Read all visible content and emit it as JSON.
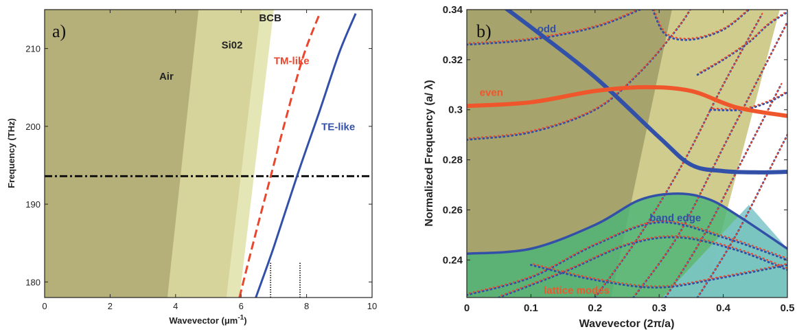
{
  "chart_data": [
    {
      "type": "line",
      "panel_label": "a)",
      "xlabel": "Wavevector (μm",
      "xlabel_sup": "-1",
      "xlabel_end": ")",
      "ylabel": "Frequency (THz)",
      "xlim": [
        0,
        10
      ],
      "ylim": [
        178,
        215
      ],
      "xticks": [
        0,
        2,
        4,
        6,
        8,
        10
      ],
      "yticks": [
        180,
        190,
        200,
        210
      ],
      "regions": [
        {
          "name": "Air",
          "color": "#b5b07a",
          "boundary": [
            [
              3.75,
              178
            ],
            [
              4.7,
              215
            ]
          ]
        },
        {
          "name": "Si02",
          "color": "#d6d49a",
          "boundary": [
            [
              5.55,
              178
            ],
            [
              6.6,
              215
            ]
          ]
        },
        {
          "name": "BCB",
          "color": "#e5e6b6",
          "boundary": [
            [
              5.95,
              178
            ],
            [
              7.0,
              215
            ]
          ]
        }
      ],
      "series": [
        {
          "name": "TM-like",
          "color": "#e8472e",
          "dash": "dashed",
          "x": [
            5.95,
            6.4,
            6.9,
            7.4,
            7.9,
            8.4
          ],
          "y": [
            178,
            185.5,
            193.5,
            201.5,
            209,
            214.5
          ]
        },
        {
          "name": "TE-like",
          "color": "#3350a8",
          "dash": "solid",
          "x": [
            6.45,
            7.0,
            7.7,
            8.4,
            9.0,
            9.5
          ],
          "y": [
            178,
            184.5,
            193.5,
            202,
            209.5,
            214.5
          ]
        }
      ],
      "hline": {
        "y": 193.6,
        "style": "dash-dot",
        "color": "#111111"
      },
      "dotted_markers": [
        {
          "x": 6.9,
          "y": [
            178,
            182.5
          ]
        },
        {
          "x": 7.8,
          "y": [
            178,
            182.5
          ]
        }
      ],
      "annotations": [
        {
          "text": "Air",
          "x": 3.5,
          "y": 206,
          "color": "#222222"
        },
        {
          "text": "Si02",
          "x": 5.4,
          "y": 210,
          "color": "#222222"
        },
        {
          "text": "BCB",
          "x": 6.55,
          "y": 213.5,
          "color": "#222222"
        },
        {
          "text": "TM-like",
          "x": 7.0,
          "y": 208,
          "color": "#e8472e"
        },
        {
          "text": "TE-like",
          "x": 8.45,
          "y": 199.5,
          "color": "#3350a8"
        }
      ]
    },
    {
      "type": "line",
      "panel_label": "b)",
      "xlabel": "Wavevector (2π/a)",
      "ylabel": "Normalized Frequency (a/ λ)",
      "xlim": [
        0,
        0.5
      ],
      "ylim": [
        0.225,
        0.34
      ],
      "xticks": [
        0,
        0.1,
        0.2,
        0.3,
        0.4,
        0.5
      ],
      "yticks": [
        0.24,
        0.26,
        0.28,
        0.3,
        0.32,
        0.34
      ],
      "regions": [
        {
          "name": "light cone outer",
          "color": "#cfcc8e"
        },
        {
          "name": "light cone inner",
          "color": "#a7a36c"
        },
        {
          "name": "lattice band region",
          "color": "#4fb577"
        },
        {
          "name": "lattice band region 2",
          "color": "#7ec6c9"
        }
      ],
      "series": [
        {
          "name": "odd",
          "color": "#3350a8",
          "x": [
            0.0,
            0.1,
            0.2,
            0.3,
            0.35,
            0.4,
            0.45,
            0.5
          ],
          "y": [
            0.352,
            0.333,
            0.313,
            0.289,
            0.278,
            0.2755,
            0.275,
            0.2752
          ]
        },
        {
          "name": "even",
          "color": "#f0562c",
          "x": [
            0.0,
            0.1,
            0.2,
            0.28,
            0.35,
            0.42,
            0.5
          ],
          "y": [
            0.3015,
            0.303,
            0.3075,
            0.309,
            0.3075,
            0.301,
            0.2975
          ]
        },
        {
          "name": "band edge",
          "color": "#3350a8",
          "x": [
            0.0,
            0.1,
            0.2,
            0.27,
            0.33,
            0.38,
            0.43,
            0.5
          ],
          "y": [
            0.2425,
            0.2445,
            0.254,
            0.264,
            0.2665,
            0.264,
            0.2565,
            0.2445
          ]
        }
      ],
      "annotations": [
        {
          "text": "odd",
          "x": 0.11,
          "y": 0.331,
          "color": "#3350a8"
        },
        {
          "text": "even",
          "x": 0.02,
          "y": 0.3055,
          "color": "#f0562c"
        },
        {
          "text": "band edge",
          "x": 0.285,
          "y": 0.2555,
          "color": "#3350a8"
        },
        {
          "text": "lattice modes",
          "x": 0.12,
          "y": 0.2265,
          "color": "#f0562c"
        }
      ]
    }
  ]
}
